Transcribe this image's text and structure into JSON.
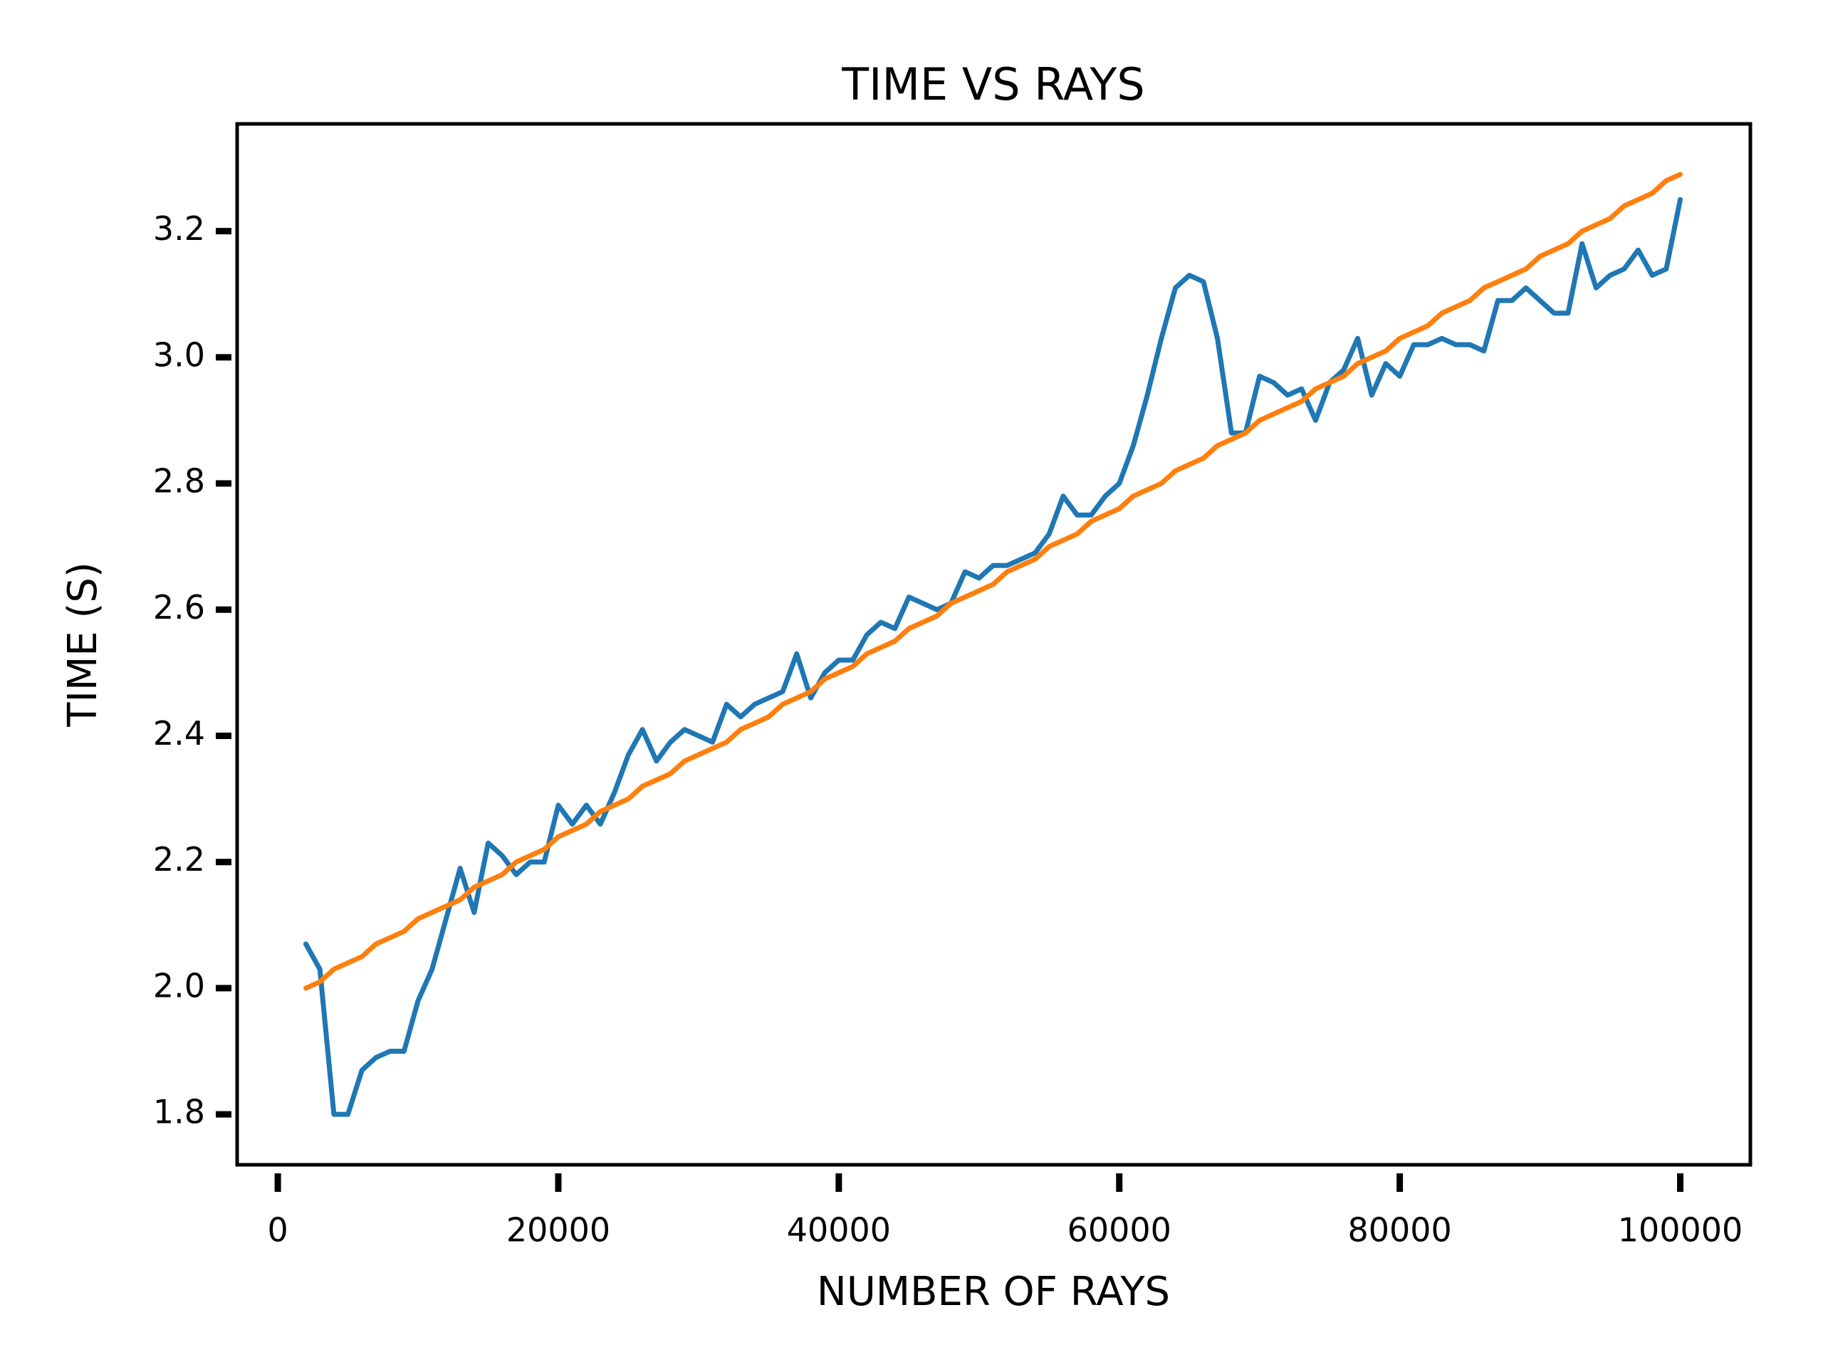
{
  "chart_data": {
    "type": "line",
    "title": "TIME VS RAYS",
    "x_label": "NUMBER OF RAYS",
    "y_label": "TIME (S)",
    "x": [
      2000,
      3000,
      4000,
      5000,
      6000,
      7000,
      8000,
      9000,
      10000,
      11000,
      12000,
      13000,
      14000,
      15000,
      16000,
      17000,
      18000,
      19000,
      20000,
      21000,
      22000,
      23000,
      24000,
      25000,
      26000,
      27000,
      28000,
      29000,
      30000,
      31000,
      32000,
      33000,
      34000,
      35000,
      36000,
      37000,
      38000,
      39000,
      40000,
      41000,
      42000,
      43000,
      44000,
      45000,
      46000,
      47000,
      48000,
      49000,
      50000,
      51000,
      52000,
      53000,
      54000,
      55000,
      56000,
      57000,
      58000,
      59000,
      60000,
      61000,
      62000,
      63000,
      64000,
      65000,
      66000,
      67000,
      68000,
      69000,
      70000,
      71000,
      72000,
      73000,
      74000,
      75000,
      76000,
      77000,
      78000,
      79000,
      80000,
      81000,
      82000,
      83000,
      84000,
      85000,
      86000,
      87000,
      88000,
      89000,
      90000,
      91000,
      92000,
      93000,
      94000,
      95000,
      96000,
      97000,
      98000,
      99000,
      100000
    ],
    "series": [
      {
        "color": "#1f77b4",
        "values": [
          2.07,
          2.03,
          1.8,
          1.8,
          1.87,
          1.89,
          1.9,
          1.9,
          1.98,
          2.03,
          2.11,
          2.19,
          2.12,
          2.23,
          2.21,
          2.18,
          2.2,
          2.2,
          2.29,
          2.26,
          2.29,
          2.26,
          2.31,
          2.37,
          2.41,
          2.36,
          2.39,
          2.41,
          2.4,
          2.39,
          2.45,
          2.43,
          2.45,
          2.46,
          2.47,
          2.53,
          2.46,
          2.5,
          2.52,
          2.52,
          2.56,
          2.58,
          2.57,
          2.62,
          2.61,
          2.6,
          2.61,
          2.66,
          2.65,
          2.67,
          2.67,
          2.68,
          2.69,
          2.72,
          2.78,
          2.75,
          2.75,
          2.78,
          2.8,
          2.86,
          2.94,
          3.03,
          3.11,
          3.13,
          3.12,
          3.03,
          2.88,
          2.88,
          2.97,
          2.96,
          2.94,
          2.95,
          2.9,
          2.96,
          2.98,
          3.03,
          2.94,
          2.99,
          2.97,
          3.02,
          3.02,
          3.03,
          3.02,
          3.02,
          3.01,
          3.09,
          3.09,
          3.11,
          3.09,
          3.07,
          3.07,
          3.18,
          3.11,
          3.13,
          3.14,
          3.17,
          3.13,
          3.14,
          3.25
        ]
      },
      {
        "color": "#ff7f0e",
        "values": [
          2.0,
          2.01,
          2.03,
          2.04,
          2.05,
          2.07,
          2.08,
          2.09,
          2.11,
          2.12,
          2.13,
          2.14,
          2.16,
          2.17,
          2.18,
          2.2,
          2.21,
          2.22,
          2.24,
          2.25,
          2.26,
          2.28,
          2.29,
          2.3,
          2.32,
          2.33,
          2.34,
          2.36,
          2.37,
          2.38,
          2.39,
          2.41,
          2.42,
          2.43,
          2.45,
          2.46,
          2.47,
          2.49,
          2.5,
          2.51,
          2.53,
          2.54,
          2.55,
          2.57,
          2.58,
          2.59,
          2.61,
          2.62,
          2.63,
          2.64,
          2.66,
          2.67,
          2.68,
          2.7,
          2.71,
          2.72,
          2.74,
          2.75,
          2.76,
          2.78,
          2.79,
          2.8,
          2.82,
          2.83,
          2.84,
          2.86,
          2.87,
          2.88,
          2.9,
          2.91,
          2.92,
          2.93,
          2.95,
          2.96,
          2.97,
          2.99,
          3.0,
          3.01,
          3.03,
          3.04,
          3.05,
          3.07,
          3.08,
          3.09,
          3.11,
          3.12,
          3.13,
          3.14,
          3.16,
          3.17,
          3.18,
          3.2,
          3.21,
          3.22,
          3.24,
          3.25,
          3.26,
          3.28,
          3.29
        ]
      }
    ],
    "xlim": [
      -2900,
      105000
    ],
    "ylim": [
      1.72,
      3.37
    ],
    "xticks": [
      0,
      20000,
      40000,
      60000,
      80000,
      100000
    ],
    "yticks": [
      1.8,
      {
        "value": 2,
        "label": "2.0"
      },
      2.2,
      2.4,
      2.6,
      2.8,
      {
        "value": 3,
        "label": "3.0"
      },
      3.2
    ]
  }
}
